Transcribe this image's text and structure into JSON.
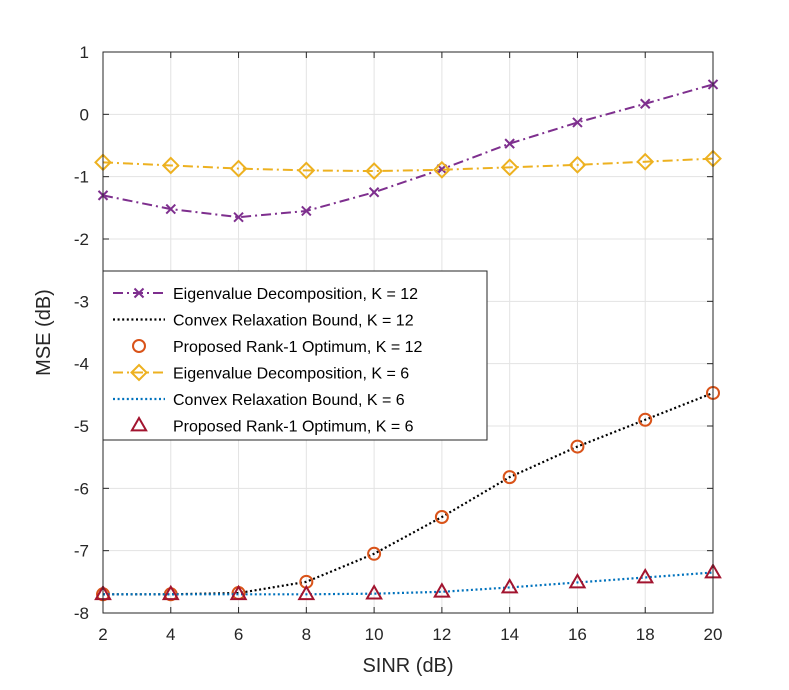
{
  "chart_data": {
    "type": "line",
    "title": "",
    "xlabel": "SINR (dB)",
    "ylabel": "MSE (dB)",
    "x": [
      2,
      4,
      6,
      8,
      10,
      12,
      14,
      16,
      18,
      20
    ],
    "xlim": [
      2,
      20
    ],
    "ylim": [
      -8,
      1
    ],
    "xticks": [
      "2",
      "4",
      "6",
      "8",
      "10",
      "12",
      "14",
      "16",
      "18",
      "20"
    ],
    "yticks": [
      "1",
      "0",
      "-1",
      "-2",
      "-3",
      "-4",
      "-5",
      "-6",
      "-7",
      "-8"
    ],
    "grid": true,
    "legend_position": "center-left",
    "series": [
      {
        "name": "Eigenvalue Decomposition, K = 12",
        "values": [
          -1.3,
          -1.52,
          -1.65,
          -1.55,
          -1.25,
          -0.88,
          -0.47,
          -0.13,
          0.17,
          0.48
        ],
        "color": "#7E2F8E",
        "line": "dashdot",
        "marker": "x"
      },
      {
        "name": "Convex Relaxation Bound, K = 12",
        "values": [
          -7.7,
          -7.7,
          -7.68,
          -7.5,
          -7.05,
          -6.46,
          -5.82,
          -5.33,
          -4.9,
          -4.47
        ],
        "color": "#000000",
        "line": "dotted",
        "marker": "none"
      },
      {
        "name": "Proposed Rank-1 Optimum, K = 12",
        "values": [
          -7.7,
          -7.7,
          -7.68,
          -7.5,
          -7.05,
          -6.46,
          -5.82,
          -5.33,
          -4.9,
          -4.47
        ],
        "color": "#D95319",
        "line": "none",
        "marker": "circle"
      },
      {
        "name": "Eigenvalue Decomposition, K = 6",
        "values": [
          -0.77,
          -0.82,
          -0.87,
          -0.9,
          -0.91,
          -0.89,
          -0.85,
          -0.81,
          -0.76,
          -0.71
        ],
        "color": "#EDB120",
        "line": "dashdot",
        "marker": "diamond"
      },
      {
        "name": "Convex Relaxation Bound, K = 6",
        "values": [
          -7.7,
          -7.7,
          -7.7,
          -7.7,
          -7.69,
          -7.66,
          -7.59,
          -7.51,
          -7.43,
          -7.35
        ],
        "color": "#0072BD",
        "line": "dotted",
        "marker": "none"
      },
      {
        "name": "Proposed Rank-1 Optimum, K = 6",
        "values": [
          -7.7,
          -7.7,
          -7.7,
          -7.7,
          -7.69,
          -7.66,
          -7.59,
          -7.51,
          -7.43,
          -7.35
        ],
        "color": "#A2142F",
        "line": "none",
        "marker": "triangle"
      }
    ]
  }
}
